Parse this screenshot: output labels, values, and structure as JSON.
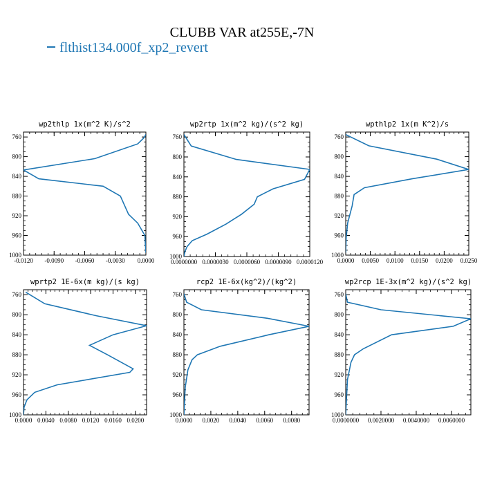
{
  "page": {
    "title": "CLUBB VAR at255E,-7N",
    "legend_label": "flthist134.000f_xp2_revert",
    "series_color": "#1f77b4"
  },
  "chart_data": [
    {
      "type": "line",
      "title": "wp2thlp   1x(m^2 K)/s^2",
      "xlim": [
        -0.012,
        0.0
      ],
      "ylim": [
        1000,
        750
      ],
      "xticks": [
        "-0.0120",
        "-0.0090",
        "-0.0060",
        "-0.0030",
        "0.0000"
      ],
      "yticks": [
        "760",
        "800",
        "840",
        "880",
        "920",
        "960",
        "1000"
      ],
      "series": [
        {
          "x": [
            0.0,
            -0.0002,
            -0.0008,
            -0.005,
            -0.012,
            -0.0105,
            -0.0042,
            -0.0025,
            -0.0017,
            -0.0008,
            -0.0001,
            0.0
          ],
          "y": [
            755,
            762,
            774,
            804,
            827,
            845,
            860,
            880,
            917,
            935,
            960,
            995
          ]
        }
      ]
    },
    {
      "type": "line",
      "title": "wp2rtp   1x(m^2 kg)/(s^2 kg)",
      "xlim": [
        0.0,
        1.2e-05
      ],
      "ylim": [
        1000,
        750
      ],
      "xticks": [
        "0.0000000",
        "0.0000030",
        "0.0000060",
        "0.0000090",
        "0.0000120"
      ],
      "yticks": [
        "760",
        "800",
        "840",
        "880",
        "920",
        "960",
        "1000"
      ],
      "series": [
        {
          "x": [
            0.0,
            7e-07,
            5e-06,
            1.2e-05,
            1.15e-05,
            8.5e-06,
            7e-06,
            6.7e-06,
            5.5e-06,
            4e-06,
            2.2e-06,
            8e-07,
            3e-07,
            1e-07,
            0.0
          ],
          "y": [
            755,
            778,
            805,
            825,
            845,
            864,
            880,
            895,
            915,
            935,
            955,
            968,
            980,
            990,
            1000
          ]
        }
      ]
    },
    {
      "type": "line",
      "title": "wpthlp2   1x(m K^2)/s",
      "xlim": [
        0.0,
        0.025
      ],
      "ylim": [
        1000,
        750
      ],
      "xticks": [
        "0.0000",
        "0.0050",
        "0.0100",
        "0.0150",
        "0.0200",
        "0.0250"
      ],
      "yticks": [
        "760",
        "800",
        "840",
        "880",
        "920",
        "960",
        "1000"
      ],
      "series": [
        {
          "x": [
            0.0,
            0.0047,
            0.0185,
            0.025,
            0.0135,
            0.0038,
            0.0017,
            0.0013,
            0.0004,
            0.0001,
            0.0
          ],
          "y": [
            755,
            778,
            805,
            826,
            845,
            863,
            877,
            900,
            935,
            965,
            995
          ]
        }
      ]
    },
    {
      "type": "line",
      "title": "wprtp2   1E-6x(m kg)/(s kg)",
      "xlim": [
        0.0,
        0.022
      ],
      "ylim": [
        1000,
        750
      ],
      "xticks": [
        "0.0000",
        "0.0040",
        "0.0080",
        "0.0120",
        "0.0160",
        "0.0200"
      ],
      "yticks": [
        "760",
        "800",
        "840",
        "880",
        "920",
        "960",
        "1000"
      ],
      "series": [
        {
          "x": [
            0.0004,
            0.0038,
            0.013,
            0.022,
            0.016,
            0.0118,
            0.015,
            0.0196,
            0.019,
            0.006,
            0.002,
            0.0006,
            0.0001,
            0.0
          ],
          "y": [
            755,
            778,
            802,
            822,
            840,
            861,
            880,
            908,
            915,
            940,
            955,
            970,
            985,
            1000
          ]
        }
      ]
    },
    {
      "type": "line",
      "title": "rcp2   1E-6x(kg^2)/(kg^2)",
      "xlim": [
        0.0,
        0.0093
      ],
      "ylim": [
        1000,
        750
      ],
      "xticks": [
        "0.0000",
        "0.0020",
        "0.0040",
        "0.0060",
        "0.0080"
      ],
      "yticks": [
        "760",
        "800",
        "840",
        "880",
        "920",
        "960",
        "1000"
      ],
      "series": [
        {
          "x": [
            0.0,
            0.0002,
            0.0013,
            0.0062,
            0.0093,
            0.0063,
            0.0027,
            0.001,
            0.0006,
            0.0003,
            0.0001,
            0.0
          ],
          "y": [
            758,
            775,
            790,
            807,
            823,
            840,
            863,
            880,
            890,
            910,
            945,
            1000
          ]
        }
      ]
    },
    {
      "type": "line",
      "title": "wp2rcp   1E-3x(m^2 kg)/(s^2 kg)",
      "xlim": [
        0.0,
        0.0071
      ],
      "ylim": [
        1000,
        750
      ],
      "xticks": [
        "0.0000000",
        "0.0020000",
        "0.0040000",
        "0.0060000"
      ],
      "yticks": [
        "760",
        "800",
        "840",
        "880",
        "920",
        "960",
        "1000"
      ],
      "series": [
        {
          "x": [
            0.0,
            0.0001,
            0.002,
            0.0071,
            0.0061,
            0.0026,
            0.001,
            0.0005,
            0.0003,
            0.0001,
            0.0
          ],
          "y": [
            758,
            775,
            790,
            808,
            823,
            840,
            868,
            880,
            895,
            930,
            1000
          ]
        }
      ]
    }
  ]
}
